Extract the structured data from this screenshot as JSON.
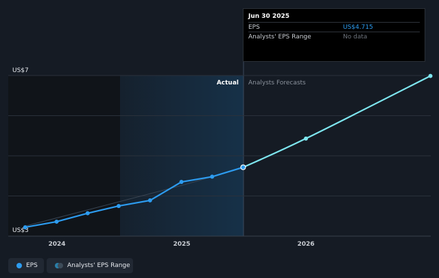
{
  "tooltip": {
    "date": "Jun 30 2025",
    "rows": [
      {
        "label": "EPS",
        "value": "US$4.715"
      },
      {
        "label": "Analysts' EPS Range",
        "value": "No data"
      }
    ]
  },
  "legend": {
    "items": [
      {
        "label": "EPS"
      },
      {
        "label": "Analysts' EPS Range"
      }
    ]
  },
  "chart_data": {
    "type": "line",
    "y_axis": {
      "min": 3,
      "max": 7,
      "tick_labels": [
        "US$7",
        "US$3"
      ]
    },
    "x_axis": {
      "range": [
        "2023-10-01",
        "2026-12-31"
      ],
      "tick_labels": [
        "2024",
        "2025",
        "2026"
      ]
    },
    "section_labels": {
      "actual": "Actual",
      "forecast": "Analysts Forecasts"
    },
    "divider_date": "2025-06-30",
    "series": [
      {
        "name": "EPS",
        "color": "#2d9cf0",
        "points": [
          {
            "date": "2023-09-30",
            "value": 3.22
          },
          {
            "date": "2023-12-31",
            "value": 3.36
          },
          {
            "date": "2024-03-31",
            "value": 3.57
          },
          {
            "date": "2024-06-30",
            "value": 3.75
          },
          {
            "date": "2024-09-30",
            "value": 3.89
          },
          {
            "date": "2024-12-31",
            "value": 4.35
          },
          {
            "date": "2025-03-31",
            "value": 4.48
          },
          {
            "date": "2025-06-30",
            "value": 4.715
          }
        ]
      },
      {
        "name": "Analysts Forecasts",
        "color": "#7ee6ef",
        "points": [
          {
            "date": "2025-06-30",
            "value": 4.715
          },
          {
            "date": "2025-12-31",
            "value": 5.43
          },
          {
            "date": "2026-12-31",
            "value": 6.99
          }
        ]
      }
    ],
    "ghost_series": {
      "color": "#3a4654",
      "points": [
        {
          "date": "2023-09-30",
          "value": 3.25
        },
        {
          "date": "2024-12-31",
          "value": 4.26
        },
        {
          "date": "2025-06-30",
          "value": 4.7
        }
      ]
    },
    "colors": {
      "background": "#151b24",
      "past_shade": "#101419",
      "highlight_band": "#16324a",
      "gridline": "#2a313b",
      "range_legend": "#2a7ea8"
    }
  }
}
